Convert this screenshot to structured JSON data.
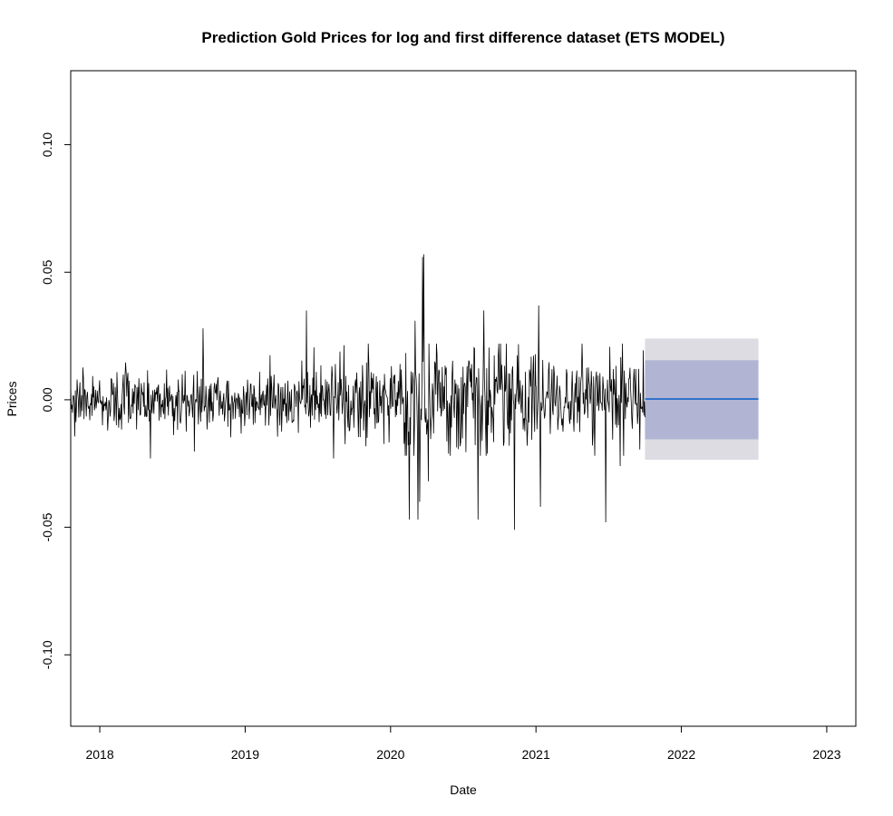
{
  "chart_data": {
    "type": "line",
    "title": "Prediction Gold Prices for log and first difference dataset (ETS MODEL)",
    "xlabel": "Date",
    "ylabel": "Prices",
    "xlim": [
      2017.8,
      2023.2
    ],
    "ylim": [
      -0.128,
      0.129
    ],
    "x_ticks": [
      2018,
      2019,
      2020,
      2021,
      2022,
      2023
    ],
    "y_ticks": [
      -0.1,
      -0.05,
      0.0,
      0.05,
      0.1
    ],
    "y_tick_labels": [
      "-0.10",
      "-0.05",
      "0.00",
      "0.05",
      "0.10"
    ],
    "grid": false,
    "legend": "none",
    "history": {
      "start": 2017.8,
      "end": 2021.75,
      "mean": 0.0,
      "base_sd": 0.0068,
      "color": "#000000",
      "spikes": [
        {
          "x": 2018.35,
          "y": -0.023
        },
        {
          "x": 2018.71,
          "y": 0.028
        },
        {
          "x": 2019.42,
          "y": 0.035
        },
        {
          "x": 2019.61,
          "y": -0.023
        },
        {
          "x": 2020.13,
          "y": -0.047
        },
        {
          "x": 2020.17,
          "y": 0.031
        },
        {
          "x": 2020.19,
          "y": -0.047
        },
        {
          "x": 2020.2,
          "y": -0.04
        },
        {
          "x": 2020.22,
          "y": 0.056
        },
        {
          "x": 2020.23,
          "y": 0.057
        },
        {
          "x": 2020.26,
          "y": -0.032
        },
        {
          "x": 2020.6,
          "y": -0.047
        },
        {
          "x": 2020.64,
          "y": 0.035
        },
        {
          "x": 2020.85,
          "y": -0.051
        },
        {
          "x": 2021.02,
          "y": 0.037
        },
        {
          "x": 2021.03,
          "y": -0.042
        },
        {
          "x": 2021.48,
          "y": -0.048
        },
        {
          "x": 2021.58,
          "y": -0.026
        }
      ]
    },
    "forecast": {
      "start": 2021.75,
      "end": 2022.53,
      "mean": 0.0003,
      "ci80": [
        -0.0155,
        0.0155
      ],
      "ci95": [
        -0.0235,
        0.024
      ],
      "line_color": "#2a6fca",
      "ci80_color": "#b1b5d3",
      "ci95_color": "#dcdce2"
    }
  }
}
